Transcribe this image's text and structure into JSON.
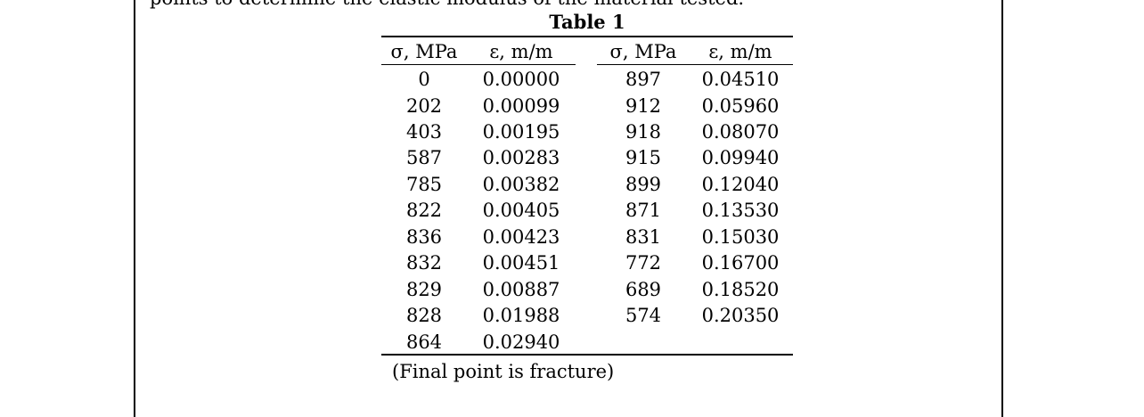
{
  "document": {
    "cut_line": "points to determine the elastic modulus of the material tested.",
    "table_title": "Table 1",
    "headers": [
      "σ, MPa",
      "ε, m/m",
      "σ, MPa",
      "ε, m/m"
    ],
    "left_rows": [
      [
        "0",
        "0.00000"
      ],
      [
        "202",
        "0.00099"
      ],
      [
        "403",
        "0.00195"
      ],
      [
        "587",
        "0.00283"
      ],
      [
        "785",
        "0.00382"
      ],
      [
        "822",
        "0.00405"
      ],
      [
        "836",
        "0.00423"
      ],
      [
        "832",
        "0.00451"
      ],
      [
        "829",
        "0.00887"
      ],
      [
        "828",
        "0.01988"
      ],
      [
        "864",
        "0.02940"
      ]
    ],
    "right_rows": [
      [
        "897",
        "0.04510"
      ],
      [
        "912",
        "0.05960"
      ],
      [
        "918",
        "0.08070"
      ],
      [
        "915",
        "0.09940"
      ],
      [
        "899",
        "0.12040"
      ],
      [
        "871",
        "0.13530"
      ],
      [
        "831",
        "0.15030"
      ],
      [
        "772",
        "0.16700"
      ],
      [
        "689",
        "0.18520"
      ],
      [
        "574",
        "0.20350"
      ]
    ],
    "note": "(Final point is fracture)"
  }
}
